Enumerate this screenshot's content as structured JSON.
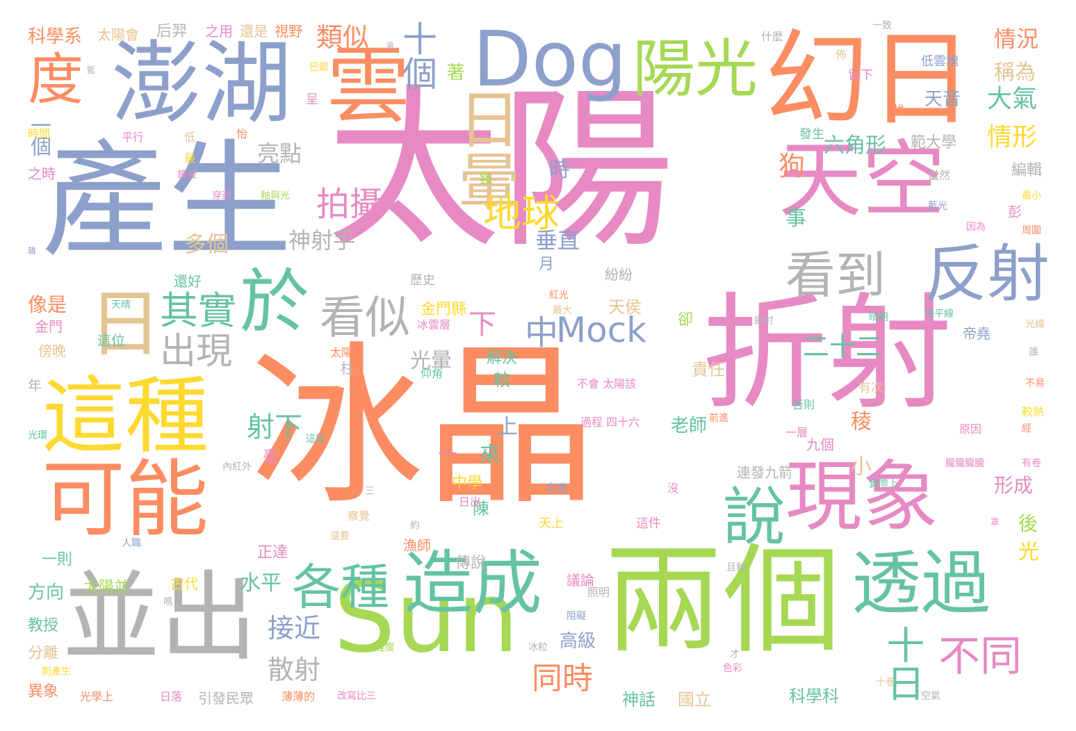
{
  "colors": [
    "#fc8d62",
    "#8da0cb",
    "#e78ac3",
    "#a6d854",
    "#ffd92f",
    "#e5c494",
    "#b3b3b3",
    "#66c2a5"
  ],
  "words": [
    {
      "text": "太陽",
      "color": "#e78ac3"
    },
    {
      "text": "冰晶",
      "color": "#fc8d62"
    },
    {
      "text": "折射",
      "color": "#e78ac3"
    },
    {
      "text": "產生",
      "color": "#8da0cb"
    },
    {
      "text": "兩個",
      "color": "#a6d854"
    },
    {
      "text": "幻日",
      "color": "#fc8d62"
    },
    {
      "text": "Sun",
      "color": "#a6d854"
    },
    {
      "text": "並出",
      "color": "#b3b3b3"
    },
    {
      "text": "天空",
      "color": "#e78ac3"
    },
    {
      "text": "這種",
      "color": "#ffd92f"
    },
    {
      "text": "澎湖",
      "color": "#8da0cb"
    },
    {
      "text": "雲",
      "color": "#fc8d62"
    },
    {
      "text": "Dog",
      "color": "#8da0cb"
    },
    {
      "text": "透過",
      "color": "#66c2a5"
    },
    {
      "text": "可能",
      "color": "#fc8d62"
    },
    {
      "text": "現象",
      "color": "#e78ac3"
    },
    {
      "text": "造成",
      "color": "#66c2a5"
    },
    {
      "text": "日",
      "color": "#e5c494"
    },
    {
      "text": "陽光",
      "color": "#a6d854"
    },
    {
      "text": "於",
      "color": "#66c2a5"
    },
    {
      "text": "反射",
      "color": "#8da0cb"
    },
    {
      "text": "看到",
      "color": "#b3b3b3"
    },
    {
      "text": "說",
      "color": "#66c2a5"
    },
    {
      "text": "度",
      "color": "#fc8d62"
    },
    {
      "text": "日暈",
      "color": "#e5c494"
    },
    {
      "text": "各種",
      "color": "#66c2a5"
    },
    {
      "text": "Mock",
      "color": "#8da0cb"
    },
    {
      "text": "看似",
      "color": "#b3b3b3"
    },
    {
      "text": "十日",
      "color": "#66c2a5"
    },
    {
      "text": "不同",
      "color": "#e78ac3"
    },
    {
      "text": "其實",
      "color": "#66c2a5"
    },
    {
      "text": "出現",
      "color": "#b3b3b3"
    },
    {
      "text": "拍攝",
      "color": "#e78ac3"
    },
    {
      "text": "地球",
      "color": "#ffd92f"
    },
    {
      "text": "十個",
      "color": "#8da0cb"
    },
    {
      "text": "類似",
      "color": "#fc8d62"
    },
    {
      "text": "同時",
      "color": "#fc8d62"
    },
    {
      "text": "散射",
      "color": "#b3b3b3"
    },
    {
      "text": "中",
      "color": "#8da0cb"
    },
    {
      "text": "二十二",
      "color": "#66c2a5"
    },
    {
      "text": "下",
      "color": "#e78ac3"
    },
    {
      "text": "狗",
      "color": "#fc8d62"
    },
    {
      "text": "接近",
      "color": "#8da0cb"
    },
    {
      "text": "水平",
      "color": "#66c2a5"
    },
    {
      "text": "射下",
      "color": "#66c2a5"
    },
    {
      "text": "大氣",
      "color": "#66c2a5"
    },
    {
      "text": "情形",
      "color": "#ffd92f"
    },
    {
      "text": "情況",
      "color": "#fc8d62"
    },
    {
      "text": "稱為",
      "color": "#e5c494"
    },
    {
      "text": "六角形",
      "color": "#66c2a5"
    },
    {
      "text": "範大學",
      "color": "#b3b3b3"
    },
    {
      "text": "亮點",
      "color": "#b3b3b3"
    },
    {
      "text": "一個",
      "color": "#8da0cb"
    },
    {
      "text": "神射手",
      "color": "#b3b3b3"
    },
    {
      "text": "多個",
      "color": "#e5c494"
    },
    {
      "text": "垂直",
      "color": "#8da0cb"
    },
    {
      "text": "時",
      "color": "#8da0cb"
    },
    {
      "text": "事",
      "color": "#66c2a5"
    },
    {
      "text": "像是",
      "color": "#fc8d62"
    },
    {
      "text": "光暈",
      "color": "#b3b3b3"
    },
    {
      "text": "上",
      "color": "#8da0cb"
    },
    {
      "text": "來",
      "color": "#66c2a5"
    },
    {
      "text": "一",
      "color": "#e78ac3"
    },
    {
      "text": "小",
      "color": "#e5c494"
    },
    {
      "text": "稜",
      "color": "#fc8d62"
    },
    {
      "text": "形成",
      "color": "#e78ac3"
    },
    {
      "text": "後",
      "color": "#a6d854"
    },
    {
      "text": "光",
      "color": "#ffd92f"
    },
    {
      "text": "方向",
      "color": "#66c2a5"
    },
    {
      "text": "老師",
      "color": "#66c2a5"
    },
    {
      "text": "天侯",
      "color": "#e5c494"
    },
    {
      "text": "責任",
      "color": "#e5c494"
    },
    {
      "text": "天音",
      "color": "#8da0cb"
    },
    {
      "text": "著",
      "color": "#a6d854"
    },
    {
      "text": "科學系",
      "color": "#fc8d62"
    },
    {
      "text": "高級",
      "color": "#8da0cb"
    },
    {
      "text": "神話",
      "color": "#66c2a5"
    },
    {
      "text": "國立",
      "color": "#e5c494"
    },
    {
      "text": "科學科",
      "color": "#66c2a5"
    },
    {
      "text": "異象",
      "color": "#fc8d62"
    },
    {
      "text": "教授",
      "color": "#66c2a5"
    },
    {
      "text": "分離",
      "color": "#e5c494"
    },
    {
      "text": "傍晚",
      "color": "#e5c494"
    },
    {
      "text": "金門縣",
      "color": "#ffd92f"
    },
    {
      "text": "中學",
      "color": "#ffd92f"
    },
    {
      "text": "金門",
      "color": "#e78ac3"
    },
    {
      "text": "正達",
      "color": "#e78ac3"
    },
    {
      "text": "傳說",
      "color": "#b3b3b3"
    },
    {
      "text": "較",
      "color": "#66c2a5"
    },
    {
      "text": "陳",
      "color": "#66c2a5"
    },
    {
      "text": "解決",
      "color": "#66c2a5"
    },
    {
      "text": "引發民眾",
      "color": "#b3b3b3"
    },
    {
      "text": "連發九箭",
      "color": "#b3b3b3"
    },
    {
      "text": "議論",
      "color": "#e78ac3"
    },
    {
      "text": "一則",
      "color": "#66c2a5"
    },
    {
      "text": "太陽並",
      "color": "#a6d854"
    },
    {
      "text": "古代",
      "color": "#ffd92f"
    },
    {
      "text": "月",
      "color": "#8da0cb"
    },
    {
      "text": "卻",
      "color": "#a6d854"
    },
    {
      "text": "彭",
      "color": "#e78ac3"
    },
    {
      "text": "編輯",
      "color": "#b3b3b3"
    },
    {
      "text": "帝堯",
      "color": "#8da0cb"
    },
    {
      "text": "柱",
      "color": "#b3b3b3"
    },
    {
      "text": "年",
      "color": "#b3b3b3"
    },
    {
      "text": "后羿",
      "color": "#b3b3b3"
    },
    {
      "text": "之用",
      "color": "#e78ac3"
    },
    {
      "text": "還是",
      "color": "#e5c494"
    },
    {
      "text": "視野",
      "color": "#fc8d62"
    },
    {
      "text": "太陽會",
      "color": "#e5c494"
    },
    {
      "text": "什麼",
      "color": "#b3b3b3"
    },
    {
      "text": "一致",
      "color": "#b3b3b3"
    },
    {
      "text": "低雲塊",
      "color": "#8da0cb"
    },
    {
      "text": "留下",
      "color": "#e78ac3"
    },
    {
      "text": "佈",
      "color": "#e5c494"
    },
    {
      "text": "時間",
      "color": "#ffd92f"
    },
    {
      "text": "平行",
      "color": "#e78ac3"
    },
    {
      "text": "低",
      "color": "#e5c494"
    },
    {
      "text": "最",
      "color": "#ffd92f"
    },
    {
      "text": "怡",
      "color": "#fc8d62"
    },
    {
      "text": "呈",
      "color": "#e78ac3"
    },
    {
      "text": "巴歐",
      "color": "#ffd92f"
    },
    {
      "text": "之時",
      "color": "#e78ac3"
    },
    {
      "text": "鏡般",
      "color": "#e78ac3"
    },
    {
      "text": "穿透",
      "color": "#e78ac3"
    },
    {
      "text": "釉與光",
      "color": "#a6d854"
    },
    {
      "text": "當然",
      "color": "#b3b3b3"
    },
    {
      "text": "藍光",
      "color": "#8da0cb"
    },
    {
      "text": "因為",
      "color": "#e78ac3"
    },
    {
      "text": "最小",
      "color": "#ffd92f"
    },
    {
      "text": "周圍",
      "color": "#fc8d62"
    },
    {
      "text": "發生",
      "color": "#66c2a5"
    },
    {
      "text": "找",
      "color": "#fc8d62"
    },
    {
      "text": "鏡",
      "color": "#a6d854"
    },
    {
      "text": "還好",
      "color": "#66c2a5"
    },
    {
      "text": "紛紛",
      "color": "#b3b3b3"
    },
    {
      "text": "歷史",
      "color": "#b3b3b3"
    },
    {
      "text": "紅光",
      "color": "#fc8d62"
    },
    {
      "text": "最大",
      "color": "#e5c494"
    },
    {
      "text": "天晴",
      "color": "#66c2a5"
    },
    {
      "text": "這位",
      "color": "#66c2a5"
    },
    {
      "text": "冰雲層",
      "color": "#e78ac3"
    },
    {
      "text": "太陽系",
      "color": "#fc8d62"
    },
    {
      "text": "仰角",
      "color": "#66c2a5"
    },
    {
      "text": "晴朗",
      "color": "#66c2a5"
    },
    {
      "text": "地平線",
      "color": "#66c2a5"
    },
    {
      "text": "纖射",
      "color": "#b3b3b3"
    },
    {
      "text": "光線",
      "color": "#e5c494"
    },
    {
      "text": "誰",
      "color": "#b3b3b3"
    },
    {
      "text": "有次",
      "color": "#e5c494"
    },
    {
      "text": "不會 太陽該",
      "color": "#e78ac3"
    },
    {
      "text": "過程 四十六",
      "color": "#e78ac3"
    },
    {
      "text": "否則",
      "color": "#66c2a5"
    },
    {
      "text": "一層",
      "color": "#e78ac3"
    },
    {
      "text": "九個",
      "color": "#e78ac3"
    },
    {
      "text": "原因",
      "color": "#e78ac3"
    },
    {
      "text": "較熱",
      "color": "#ffd92f"
    },
    {
      "text": "不易",
      "color": "#fc8d62"
    },
    {
      "text": "經",
      "color": "#fc8d62"
    },
    {
      "text": "有卷",
      "color": "#e78ac3"
    },
    {
      "text": "實際上",
      "color": "#66c2a5"
    },
    {
      "text": "朧朧朧朧",
      "color": "#e78ac3"
    },
    {
      "text": "光環",
      "color": "#66c2a5"
    },
    {
      "text": "這段",
      "color": "#66c2a5"
    },
    {
      "text": "內紅外",
      "color": "#b3b3b3"
    },
    {
      "text": "三",
      "color": "#b3b3b3"
    },
    {
      "text": "究竟",
      "color": "#8da0cb"
    },
    {
      "text": "沒",
      "color": "#e78ac3"
    },
    {
      "text": "日出",
      "color": "#e78ac3"
    },
    {
      "text": "察覺",
      "color": "#e5c494"
    },
    {
      "text": "約",
      "color": "#b3b3b3"
    },
    {
      "text": "天上",
      "color": "#ffd92f"
    },
    {
      "text": "這件",
      "color": "#e78ac3"
    },
    {
      "text": "漁師",
      "color": "#fc8d62"
    },
    {
      "text": "人職",
      "color": "#8da0cb"
    },
    {
      "text": "還要",
      "color": "#e5c494"
    },
    {
      "text": "嗎",
      "color": "#b3b3b3"
    },
    {
      "text": "且釉",
      "color": "#b3b3b3"
    },
    {
      "text": "照明",
      "color": "#b3b3b3"
    },
    {
      "text": "阻礙",
      "color": "#8da0cb"
    },
    {
      "text": "程度",
      "color": "#a6d854"
    },
    {
      "text": "冰粒",
      "color": "#b3b3b3"
    },
    {
      "text": "才",
      "color": "#b3b3b3"
    },
    {
      "text": "色彩",
      "color": "#e78ac3"
    },
    {
      "text": "空氣",
      "color": "#b3b3b3"
    },
    {
      "text": "則產生",
      "color": "#ffd92f"
    },
    {
      "text": "光學上",
      "color": "#fc8d62"
    },
    {
      "text": "日落",
      "color": "#e78ac3"
    },
    {
      "text": "薄薄的",
      "color": "#fc8d62"
    },
    {
      "text": "改寫比三",
      "color": "#e78ac3"
    },
    {
      "text": "十卷",
      "color": "#e5c494"
    },
    {
      "text": "雜",
      "color": "#8da0cb"
    },
    {
      "text": "藍",
      "color": "#b3b3b3"
    },
    {
      "text": "淆",
      "color": "#b3b3b3"
    },
    {
      "text": "臺",
      "color": "#e78ac3"
    },
    {
      "text": "前進",
      "color": "#fc8d62"
    },
    {
      "text": "罩",
      "color": "#e78ac3"
    }
  ]
}
